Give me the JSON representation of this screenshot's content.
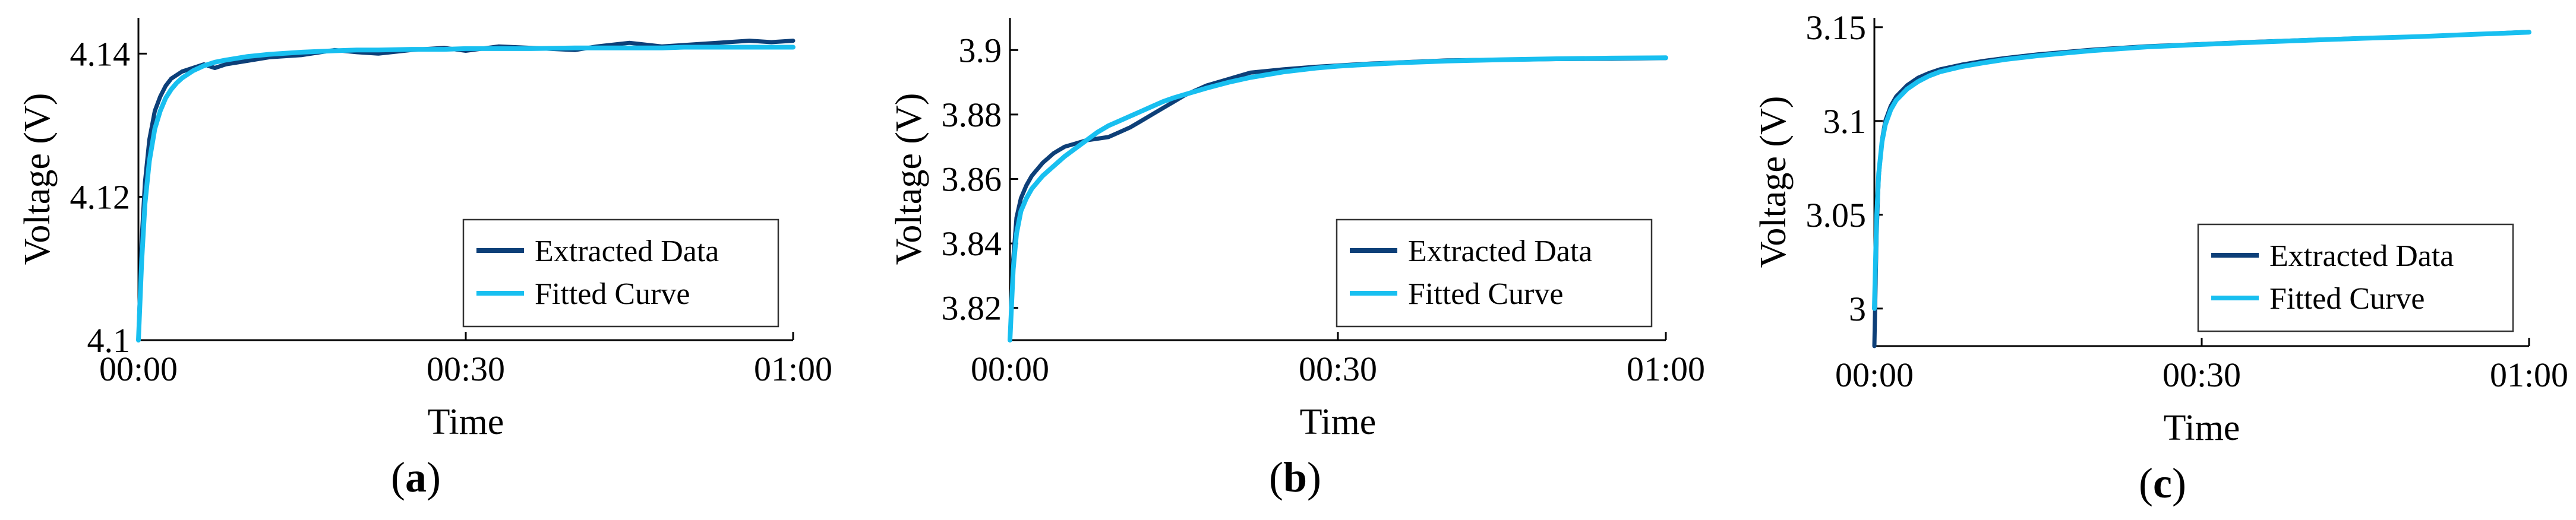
{
  "colors": {
    "extracted": "#0d3f78",
    "fitted": "#18bff0",
    "axis": "#000000",
    "legend_border": "#333333"
  },
  "chart_data": [
    {
      "panel": "a",
      "type": "line",
      "label_open": "(",
      "label_letter": "a",
      "label_close": ")",
      "xlabel": "Time",
      "ylabel": "Voltage (V)",
      "xlim": [
        0,
        60
      ],
      "ylim": [
        4.1,
        4.145
      ],
      "x_ticks": [
        0,
        30,
        60
      ],
      "x_tick_labels": [
        "00:00",
        "00:30",
        "01:00"
      ],
      "y_ticks": [
        4.1,
        4.12,
        4.14
      ],
      "y_tick_labels": [
        "4.1",
        "4.12",
        "4.14"
      ],
      "legend_position": "bottom-right",
      "series": [
        {
          "name": "Extracted Data",
          "role": "extracted",
          "x": [
            0,
            0.3,
            0.6,
            1,
            1.5,
            2,
            2.5,
            3,
            3.5,
            4,
            5,
            6,
            7,
            8,
            10,
            12,
            15,
            18,
            20,
            22,
            25,
            28,
            30,
            33,
            36,
            40,
            42,
            45,
            48,
            50,
            53,
            56,
            58,
            60
          ],
          "y": [
            4.1,
            4.114,
            4.122,
            4.128,
            4.132,
            4.134,
            4.1355,
            4.1365,
            4.137,
            4.1375,
            4.138,
            4.1385,
            4.138,
            4.1385,
            4.139,
            4.1395,
            4.1398,
            4.1405,
            4.1402,
            4.14,
            4.1405,
            4.1408,
            4.1404,
            4.141,
            4.1408,
            4.1405,
            4.141,
            4.1415,
            4.141,
            4.1412,
            4.1415,
            4.1418,
            4.1416,
            4.1418
          ]
        },
        {
          "name": "Fitted Curve",
          "role": "fitted",
          "x": [
            0,
            0.3,
            0.6,
            1,
            1.5,
            2,
            2.5,
            3,
            3.5,
            4,
            5,
            6,
            7,
            8,
            10,
            12,
            15,
            18,
            20,
            22,
            25,
            28,
            30,
            33,
            36,
            40,
            42,
            45,
            48,
            50,
            53,
            56,
            58,
            60
          ],
          "y": [
            4.1,
            4.111,
            4.119,
            4.125,
            4.1295,
            4.132,
            4.1338,
            4.135,
            4.1359,
            4.1366,
            4.1376,
            4.1383,
            4.1388,
            4.1391,
            4.1396,
            4.1399,
            4.1402,
            4.1404,
            4.1405,
            4.1405,
            4.1406,
            4.1406,
            4.1407,
            4.1407,
            4.1407,
            4.1408,
            4.1408,
            4.1408,
            4.1408,
            4.1409,
            4.1409,
            4.1409,
            4.1409,
            4.1409
          ]
        }
      ]
    },
    {
      "panel": "b",
      "type": "line",
      "label_open": "(",
      "label_letter": "b",
      "label_close": ")",
      "xlabel": "Time",
      "ylabel": "Voltage (V)",
      "xlim": [
        0,
        60
      ],
      "ylim": [
        3.81,
        3.91
      ],
      "x_ticks": [
        0,
        30,
        60
      ],
      "x_tick_labels": [
        "00:00",
        "00:30",
        "01:00"
      ],
      "y_ticks": [
        3.82,
        3.84,
        3.86,
        3.88,
        3.9
      ],
      "y_tick_labels": [
        "3.82",
        "3.84",
        "3.86",
        "3.88",
        "3.9"
      ],
      "legend_position": "bottom-right",
      "series": [
        {
          "name": "Extracted Data",
          "role": "extracted",
          "x": [
            0,
            0.3,
            0.6,
            1,
            1.5,
            2,
            3,
            4,
            5,
            6,
            7,
            8,
            9,
            10,
            11,
            12,
            13,
            14,
            15,
            16,
            18,
            20,
            22,
            25,
            28,
            30,
            33,
            36,
            40,
            45,
            50,
            55,
            60
          ],
          "y": [
            3.81,
            3.835,
            3.848,
            3.854,
            3.858,
            3.861,
            3.865,
            3.868,
            3.87,
            3.871,
            3.872,
            3.8725,
            3.873,
            3.8745,
            3.876,
            3.878,
            3.88,
            3.882,
            3.884,
            3.886,
            3.889,
            3.891,
            3.893,
            3.894,
            3.8948,
            3.8952,
            3.8958,
            3.8962,
            3.8968,
            3.897,
            3.8972,
            3.8973,
            3.8975
          ]
        },
        {
          "name": "Fitted Curve",
          "role": "fitted",
          "x": [
            0,
            0.3,
            0.6,
            1,
            1.5,
            2,
            3,
            4,
            5,
            6,
            7,
            8,
            9,
            10,
            11,
            12,
            13,
            14,
            15,
            16,
            18,
            20,
            22,
            25,
            28,
            30,
            33,
            36,
            40,
            45,
            50,
            55,
            60
          ],
          "y": [
            3.81,
            3.832,
            3.843,
            3.85,
            3.854,
            3.857,
            3.861,
            3.864,
            3.867,
            3.8695,
            3.872,
            3.8745,
            3.8765,
            3.878,
            3.8795,
            3.881,
            3.8825,
            3.884,
            3.8852,
            3.8862,
            3.8882,
            3.89,
            3.8915,
            3.8932,
            3.8944,
            3.895,
            3.8956,
            3.8961,
            3.8966,
            3.897,
            3.8973,
            3.8975,
            3.8976
          ]
        }
      ]
    },
    {
      "panel": "c",
      "type": "line",
      "label_open": "(",
      "label_letter": "c",
      "label_close": ")",
      "xlabel": "Time",
      "ylabel": "Voltage (V)",
      "xlim": [
        0,
        60
      ],
      "ylim": [
        2.98,
        3.155
      ],
      "x_ticks": [
        0,
        30,
        60
      ],
      "x_tick_labels": [
        "00:00",
        "00:30",
        "01:00"
      ],
      "y_ticks": [
        3.0,
        3.05,
        3.1,
        3.15
      ],
      "y_tick_labels": [
        "3",
        "3.05",
        "3.1",
        "3.15"
      ],
      "legend_position": "bottom-right",
      "series": [
        {
          "name": "Extracted Data",
          "role": "extracted",
          "x": [
            0,
            0.2,
            0.4,
            0.7,
            1,
            1.5,
            2,
            3,
            4,
            5,
            6,
            8,
            10,
            12,
            15,
            18,
            20,
            25,
            30,
            35,
            40,
            45,
            50,
            55,
            60
          ],
          "y": [
            2.98,
            3.04,
            3.07,
            3.09,
            3.1,
            3.108,
            3.113,
            3.119,
            3.123,
            3.1255,
            3.1275,
            3.13,
            3.132,
            3.1335,
            3.1355,
            3.137,
            3.138,
            3.1398,
            3.141,
            3.1422,
            3.1432,
            3.1442,
            3.145,
            3.1462,
            3.1475
          ]
        },
        {
          "name": "Fitted Curve",
          "role": "fitted",
          "x": [
            0,
            0.2,
            0.4,
            0.7,
            1,
            1.5,
            2,
            3,
            4,
            5,
            6,
            8,
            10,
            12,
            15,
            18,
            20,
            25,
            30,
            35,
            40,
            45,
            50,
            55,
            60
          ],
          "y": [
            3.0,
            3.048,
            3.072,
            3.089,
            3.098,
            3.106,
            3.111,
            3.117,
            3.121,
            3.124,
            3.1262,
            3.129,
            3.131,
            3.1328,
            3.1348,
            3.1365,
            3.1375,
            3.1395,
            3.1408,
            3.142,
            3.1431,
            3.1441,
            3.145,
            3.1462,
            3.1473
          ]
        }
      ]
    }
  ]
}
